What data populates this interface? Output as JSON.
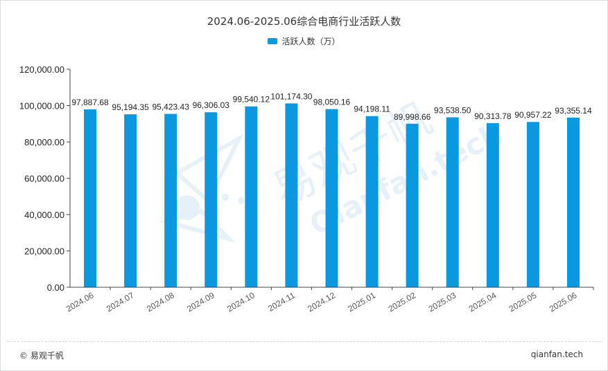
{
  "title": "2024.06-2025.06综合电商行业活跃人数",
  "footer": {
    "copyright": "© 易观千帆",
    "site": "qianfan.tech"
  },
  "watermark": {
    "cn": "易观千帆",
    "en": "Qianfan.tech"
  },
  "chart_data": {
    "type": "bar",
    "title": "2024.06-2025.06综合电商行业活跃人数",
    "xlabel": "",
    "ylabel": "",
    "categories": [
      "2024.06",
      "2024.07",
      "2024.08",
      "2024.09",
      "2024.10",
      "2024.11",
      "2024.12",
      "2025.01",
      "2025.02",
      "2025.03",
      "2025.04",
      "2025.05",
      "2025.06"
    ],
    "series": [
      {
        "name": "活跃人数（万）",
        "color": "#0a98e0",
        "values": [
          97887.68,
          95194.35,
          95423.43,
          96306.03,
          99540.12,
          101174.3,
          98050.16,
          94198.11,
          89998.66,
          93538.5,
          90313.78,
          90957.22,
          93355.14
        ],
        "labels": [
          "97,887.68",
          "95,194.35",
          "95,423.43",
          "96,306.03",
          "99,540.12",
          "101,174.30",
          "98,050.16",
          "94,198.11",
          "89,998.66",
          "93,538.50",
          "90,313.78",
          "90,957.22",
          "93,355.14"
        ]
      }
    ],
    "ylim": [
      0,
      120000
    ],
    "yticks": [
      0,
      20000,
      40000,
      60000,
      80000,
      100000,
      120000
    ],
    "ytick_labels": [
      "0.00",
      "20,000.00",
      "40,000.00",
      "60,000.00",
      "80,000.00",
      "100,000.00",
      "120,000.00"
    ],
    "grid": false,
    "legend_position": "top-center"
  }
}
